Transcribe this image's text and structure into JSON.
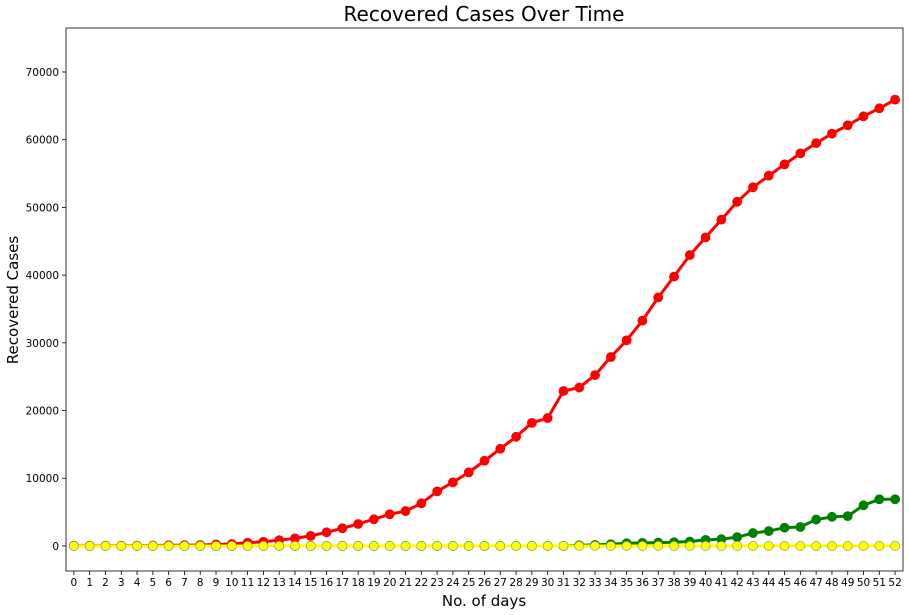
{
  "chart_data": {
    "type": "line",
    "title": "Recovered Cases Over Time",
    "xlabel": "No. of days",
    "ylabel": "Recovered Cases",
    "xlim": [
      -0.5,
      52.5
    ],
    "ylim": [
      -3700,
      76500
    ],
    "yticks": [
      0,
      10000,
      20000,
      30000,
      40000,
      50000,
      60000,
      70000
    ],
    "ytick_labels": [
      "0",
      "10000",
      "20000",
      "30000",
      "40000",
      "50000",
      "60000",
      "70000"
    ],
    "x": [
      0,
      1,
      2,
      3,
      4,
      5,
      6,
      7,
      8,
      9,
      10,
      11,
      12,
      13,
      14,
      15,
      16,
      17,
      18,
      19,
      20,
      21,
      22,
      23,
      24,
      25,
      26,
      27,
      28,
      29,
      30,
      31,
      32,
      33,
      34,
      35,
      36,
      37,
      38,
      39,
      40,
      41,
      42,
      43,
      44,
      45,
      46,
      47,
      48,
      49,
      50,
      51,
      52
    ],
    "xtick_labels": [
      "0",
      "1",
      "2",
      "3",
      "4",
      "5",
      "6",
      "7",
      "8",
      "9",
      "10",
      "11",
      "12",
      "13",
      "14",
      "15",
      "16",
      "17",
      "18",
      "19",
      "20",
      "21",
      "22",
      "23",
      "24",
      "25",
      "26",
      "27",
      "28",
      "29",
      "30",
      "31",
      "32",
      "33",
      "34",
      "35",
      "36",
      "37",
      "38",
      "39",
      "40",
      "41",
      "42",
      "43",
      "44",
      "45",
      "46",
      "47",
      "48",
      "49",
      "50",
      "51",
      "52"
    ],
    "grid": false,
    "legend": "none",
    "series": [
      {
        "color": "#ff0000",
        "values": [
          28,
          30,
          36,
          39,
          52,
          61,
          107,
          126,
          143,
          222,
          284,
          472,
          623,
          852,
          1124,
          1487,
          2011,
          2616,
          3244,
          3946,
          4683,
          5150,
          6295,
          8058,
          9395,
          10865,
          12583,
          14352,
          16121,
          18177,
          18890,
          22886,
          23394,
          25227,
          27905,
          30384,
          33277,
          36711,
          39782,
          42962,
          45580,
          48197,
          50830,
          52973,
          54685,
          56356,
          57981,
          59496,
          60901,
          62136,
          63455,
          64643,
          65918
        ]
      },
      {
        "color": "#008000",
        "values": [
          0,
          0,
          0,
          0,
          0,
          0,
          0,
          0,
          0,
          0,
          0,
          0,
          0,
          0,
          0,
          0,
          0,
          0,
          0,
          0,
          0,
          0,
          0,
          0,
          0,
          0,
          0,
          0,
          0,
          0,
          0,
          0,
          100,
          150,
          250,
          400,
          450,
          500,
          550,
          650,
          900,
          1000,
          1300,
          1900,
          2200,
          2700,
          2800,
          3900,
          4300,
          4400,
          6000,
          6900,
          6900
        ]
      },
      {
        "color": "#ffff00",
        "values": [
          0,
          0,
          0,
          0,
          0,
          0,
          0,
          0,
          0,
          0,
          0,
          0,
          0,
          0,
          0,
          0,
          0,
          0,
          0,
          0,
          0,
          0,
          0,
          0,
          0,
          0,
          0,
          0,
          0,
          0,
          0,
          0,
          0,
          0,
          0,
          0,
          0,
          0,
          0,
          0,
          0,
          0,
          0,
          0,
          0,
          0,
          0,
          0,
          0,
          0,
          0,
          0,
          0
        ]
      }
    ]
  }
}
